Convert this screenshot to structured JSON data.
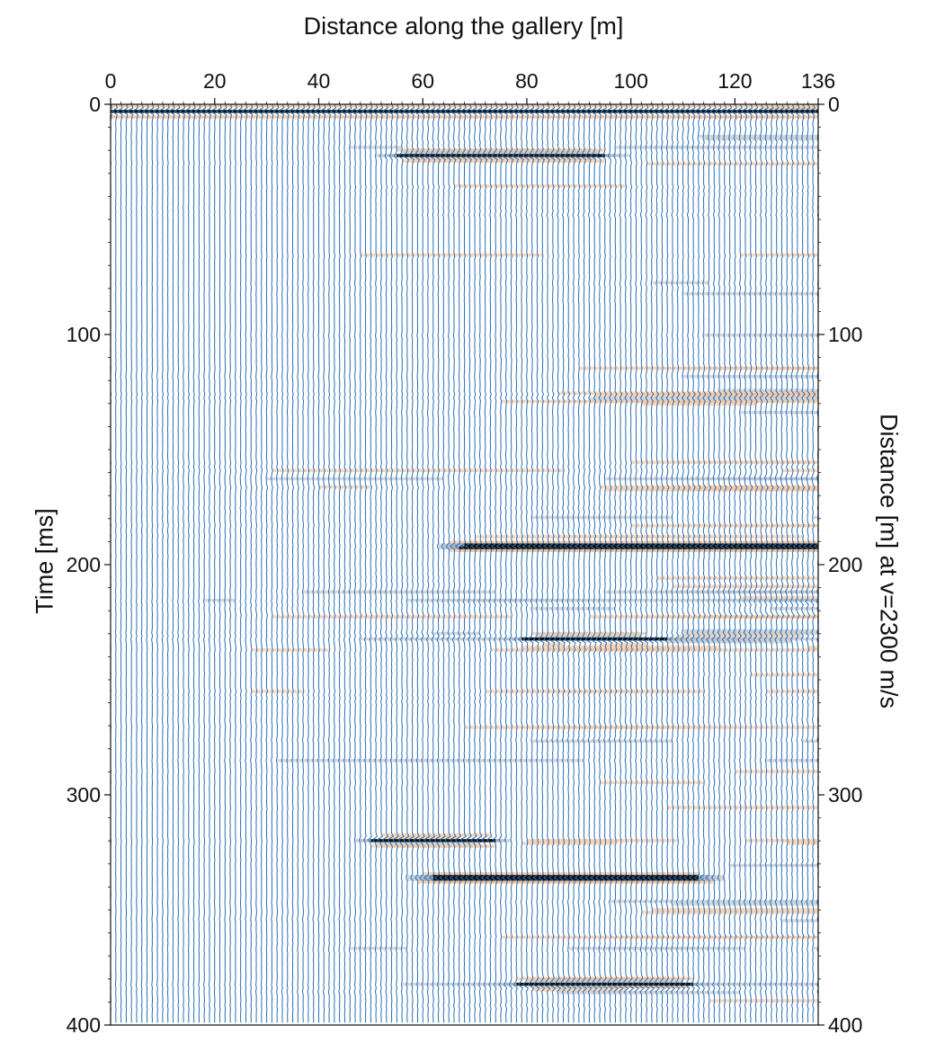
{
  "chart_data": {
    "type": "heatmap",
    "title": "Distance along the gallery [m]",
    "xlabel": "Distance along the gallery [m]",
    "ylabel": "Time [ms]",
    "y2label": "Distance [m] at v=2300 m/s",
    "xlim": [
      0,
      136
    ],
    "ylim": [
      0,
      400
    ],
    "y_inverted": true,
    "x_ticks": [
      0,
      20,
      40,
      60,
      80,
      100,
      120,
      136
    ],
    "y_ticks": [
      0,
      100,
      200,
      300,
      400
    ],
    "y2_ticks": [
      0,
      100,
      200,
      300,
      400
    ],
    "trace_spacing_m": 1,
    "strong_reflectors": [
      {
        "time_ms": 3,
        "x_from": 0,
        "x_to": 136
      },
      {
        "time_ms": 22,
        "x_from": 60,
        "x_to": 90
      },
      {
        "time_ms": 192,
        "x_from": 70,
        "x_to": 136
      },
      {
        "time_ms": 232,
        "x_from": 85,
        "x_to": 100
      },
      {
        "time_ms": 320,
        "x_from": 55,
        "x_to": 70
      },
      {
        "time_ms": 336,
        "x_from": 65,
        "x_to": 110
      },
      {
        "time_ms": 382,
        "x_from": 85,
        "x_to": 105
      }
    ],
    "colors": {
      "trace": "#2a6fb5",
      "positive_fill": "#f0a66a",
      "strong_positive": "#e0561f",
      "mid": "#3f8f3a",
      "negative_fill": "#9aa8b8",
      "strong_negative": "#111111"
    }
  }
}
